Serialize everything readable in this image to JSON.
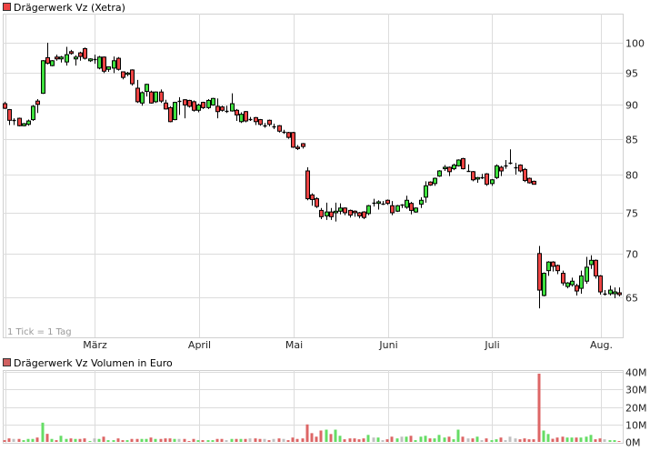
{
  "chart_data": [
    {
      "type": "candlestick",
      "title": "Drägerwerk Vz (Xetra)",
      "note": "1 Tick = 1 Tag",
      "y_scale": "log",
      "ylim": [
        62,
        104
      ],
      "y_ticks": [
        65,
        70,
        75,
        80,
        85,
        90,
        95,
        100
      ],
      "x_ticks": [
        {
          "label": "März",
          "month": "03"
        },
        {
          "label": "April",
          "month": "04"
        },
        {
          "label": "Mai",
          "month": "05"
        },
        {
          "label": "Juni",
          "month": "06"
        },
        {
          "label": "Juli",
          "month": "07"
        },
        {
          "label": "Aug.",
          "month": "08"
        }
      ],
      "grid": true,
      "y_axis_side": "right",
      "colors": {
        "up": "#3ee03e",
        "down": "#ee4444",
        "legend": "#ee4444"
      },
      "candle_fields": [
        "date",
        "open",
        "high",
        "low",
        "close"
      ],
      "candles": [
        [
          "02.02.",
          90.2,
          90.5,
          89.4,
          89.5
        ],
        [
          "03.02.",
          89.3,
          89.4,
          87.0,
          87.7
        ],
        [
          "04.02.",
          87.7,
          88.0,
          87.0,
          87.7
        ],
        [
          "05.02.",
          88.0,
          88.1,
          86.8,
          86.9
        ],
        [
          "06.02.",
          86.9,
          87.3,
          86.8,
          87.2
        ],
        [
          "09.02.",
          87.1,
          87.8,
          86.9,
          87.6
        ],
        [
          "10.02.",
          87.8,
          90.0,
          87.6,
          89.8
        ],
        [
          "11.02.",
          90.6,
          90.9,
          88.8,
          90.1
        ],
        [
          "12.02.",
          91.8,
          97.1,
          91.7,
          97.0
        ],
        [
          "13.02.",
          97.5,
          100.0,
          96.4,
          96.6
        ],
        [
          "16.02.",
          96.2,
          97.1,
          96.1,
          97.0
        ],
        [
          "17.02.",
          97.6,
          98.0,
          97.0,
          97.3
        ],
        [
          "18.02.",
          97.3,
          97.8,
          96.7,
          97.6
        ],
        [
          "19.02.",
          96.8,
          99.3,
          96.2,
          98.0
        ],
        [
          "20.02.",
          98.5,
          98.8,
          98.0,
          98.2
        ],
        [
          "23.02.",
          97.3,
          97.9,
          96.2,
          97.6
        ],
        [
          "24.02.",
          98.3,
          98.5,
          97.0,
          97.7
        ],
        [
          "25.02.",
          99.0,
          99.2,
          97.2,
          97.4
        ],
        [
          "26.02.",
          97.0,
          97.4,
          96.8,
          97.3
        ],
        [
          "27.02.",
          97.3,
          98.0,
          96.5,
          97.3
        ],
        [
          "02.03.",
          95.8,
          97.8,
          95.6,
          97.6
        ],
        [
          "03.03.",
          97.6,
          97.7,
          95.0,
          95.3
        ],
        [
          "04.03.",
          95.6,
          96.0,
          95.2,
          96.0
        ],
        [
          "05.03.",
          95.8,
          97.7,
          95.0,
          97.0
        ],
        [
          "06.03.",
          97.4,
          97.6,
          95.4,
          95.6
        ],
        [
          "09.03.",
          95.2,
          95.2,
          94.0,
          94.3
        ],
        [
          "10.03.",
          94.8,
          95.2,
          94.5,
          95.0
        ],
        [
          "11.03.",
          95.5,
          95.6,
          93.0,
          93.3
        ],
        [
          "12.03.",
          92.6,
          93.9,
          90.3,
          90.5
        ],
        [
          "13.03.",
          90.3,
          92.1,
          89.9,
          91.9
        ],
        [
          "16.03.",
          92.1,
          93.3,
          91.3,
          93.2
        ],
        [
          "17.03.",
          92.0,
          92.2,
          90.2,
          90.3
        ],
        [
          "18.03.",
          90.5,
          92.1,
          90.3,
          92.0
        ],
        [
          "19.03.",
          92.0,
          92.4,
          90.3,
          90.6
        ],
        [
          "20.03.",
          90.3,
          90.8,
          89.3,
          89.4
        ],
        [
          "23.03.",
          89.6,
          89.8,
          87.4,
          87.5
        ],
        [
          "24.03.",
          87.8,
          90.5,
          87.7,
          90.4
        ],
        [
          "25.03.",
          90.6,
          91.2,
          88.5,
          90.6
        ],
        [
          "26.03.",
          90.8,
          90.9,
          88.0,
          90.0
        ],
        [
          "27.03.",
          90.7,
          90.8,
          89.6,
          89.8
        ],
        [
          "30.03.",
          90.5,
          90.7,
          89.0,
          89.2
        ],
        [
          "31.03.",
          89.2,
          90.2,
          88.9,
          90.0
        ],
        [
          "01.04.",
          90.4,
          90.5,
          89.4,
          89.6
        ],
        [
          "02.04.",
          89.6,
          90.9,
          89.4,
          90.7
        ],
        [
          "07.04.",
          90.0,
          91.1,
          89.9,
          91.0
        ],
        [
          "08.04.",
          89.8,
          91.0,
          88.0,
          89.0
        ],
        [
          "09.04.",
          89.7,
          89.9,
          89.0,
          89.2
        ],
        [
          "10.04.",
          89.1,
          89.9,
          88.8,
          89.1
        ],
        [
          "13.04.",
          89.1,
          91.8,
          89.0,
          90.2
        ],
        [
          "14.04.",
          89.2,
          89.4,
          87.6,
          88.5
        ],
        [
          "15.04.",
          87.5,
          88.9,
          87.3,
          88.6
        ],
        [
          "16.04.",
          89.0,
          89.1,
          87.4,
          87.6
        ],
        [
          "17.04.",
          87.9,
          88.2,
          87.6,
          87.9
        ],
        [
          "20.04.",
          88.1,
          88.2,
          87.0,
          87.5
        ],
        [
          "21.04.",
          87.8,
          87.9,
          86.9,
          87.1
        ],
        [
          "22.04.",
          87.0,
          87.3,
          86.6,
          87.0
        ],
        [
          "23.04.",
          87.7,
          87.8,
          86.8,
          87.1
        ],
        [
          "24.04.",
          86.8,
          87.2,
          86.4,
          86.8
        ],
        [
          "27.04.",
          86.9,
          87.0,
          85.9,
          86.1
        ],
        [
          "28.04.",
          86.0,
          86.3,
          85.7,
          86.0
        ],
        [
          "29.04.",
          85.9,
          86.0,
          85.0,
          85.2
        ],
        [
          "30.04.",
          85.9,
          86.0,
          83.7,
          83.8
        ],
        [
          "04.05.",
          83.8,
          84.1,
          83.4,
          83.6
        ],
        [
          "05.05.",
          84.3,
          84.4,
          83.6,
          83.9
        ],
        [
          "06.05.",
          80.5,
          81.0,
          76.6,
          76.8
        ],
        [
          "07.05.",
          77.3,
          77.5,
          75.9,
          76.7
        ],
        [
          "08.05.",
          76.8,
          77.0,
          75.6,
          75.8
        ],
        [
          "11.05.",
          75.3,
          75.6,
          74.2,
          74.5
        ],
        [
          "12.05.",
          74.6,
          76.3,
          74.1,
          75.1
        ],
        [
          "13.05.",
          75.1,
          75.6,
          74.1,
          74.5
        ],
        [
          "14.05.",
          75.0,
          76.3,
          73.9,
          75.2
        ],
        [
          "15.05.",
          75.2,
          76.2,
          74.8,
          75.6
        ],
        [
          "18.05.",
          75.6,
          75.7,
          74.7,
          75.0
        ],
        [
          "19.05.",
          75.3,
          75.4,
          74.4,
          74.7
        ],
        [
          "20.05.",
          75.2,
          75.3,
          74.5,
          75.0
        ],
        [
          "21.05.",
          75.0,
          75.1,
          74.3,
          74.6
        ],
        [
          "22.05.",
          75.1,
          75.2,
          74.2,
          74.4
        ],
        [
          "25.05.",
          74.9,
          76.0,
          74.7,
          75.9
        ],
        [
          "26.05.",
          76.3,
          76.8,
          75.8,
          76.3
        ],
        [
          "27.05.",
          76.2,
          76.6,
          75.4,
          76.4
        ],
        [
          "28.05.",
          76.2,
          76.5,
          76.0,
          76.2
        ],
        [
          "29.05.",
          76.6,
          76.7,
          76.0,
          76.2
        ],
        [
          "01.06.",
          75.9,
          76.5,
          74.7,
          75.0
        ],
        [
          "02.06.",
          75.2,
          76.0,
          75.1,
          75.9
        ],
        [
          "03.06.",
          76.0,
          76.1,
          75.6,
          76.0
        ],
        [
          "04.06.",
          75.7,
          77.2,
          75.5,
          76.6
        ],
        [
          "05.06.",
          76.2,
          76.4,
          74.8,
          75.3
        ],
        [
          "08.06.",
          75.1,
          75.7,
          75.0,
          75.6
        ],
        [
          "09.06.",
          76.1,
          77.0,
          75.6,
          76.6
        ],
        [
          "10.06.",
          77.0,
          79.1,
          76.3,
          78.5
        ],
        [
          "11.06.",
          79.0,
          79.1,
          78.5,
          78.6
        ],
        [
          "12.06.",
          78.8,
          79.6,
          78.5,
          79.5
        ],
        [
          "15.06.",
          79.8,
          80.6,
          79.7,
          80.5
        ],
        [
          "16.06.",
          80.8,
          81.3,
          80.5,
          81.0
        ],
        [
          "17.06.",
          81.0,
          81.1,
          79.8,
          80.4
        ],
        [
          "18.06.",
          80.8,
          81.5,
          80.6,
          81.3
        ],
        [
          "19.06.",
          81.2,
          82.1,
          81.1,
          82.0
        ],
        [
          "22.06.",
          82.2,
          82.3,
          80.7,
          80.8
        ],
        [
          "23.06.",
          80.5,
          81.4,
          80.4,
          80.5
        ],
        [
          "24.06.",
          80.4,
          80.5,
          79.1,
          79.3
        ],
        [
          "25.06.",
          79.4,
          79.7,
          78.9,
          79.6
        ],
        [
          "26.06.",
          79.6,
          80.1,
          79.4,
          79.6
        ],
        [
          "29.06.",
          80.1,
          80.2,
          78.5,
          78.7
        ],
        [
          "30.06.",
          78.8,
          79.4,
          78.5,
          79.3
        ],
        [
          "01.07.",
          79.6,
          81.4,
          79.4,
          81.2
        ],
        [
          "02.07.",
          81.0,
          81.2,
          79.8,
          80.5
        ],
        [
          "03.07.",
          81.2,
          82.0,
          80.8,
          81.2
        ],
        [
          "06.07.",
          81.6,
          83.5,
          81.4,
          81.6
        ],
        [
          "07.07.",
          81.0,
          81.6,
          80.0,
          81.0
        ],
        [
          "08.07.",
          81.3,
          81.4,
          80.3,
          80.5
        ],
        [
          "09.07.",
          80.7,
          80.9,
          79.0,
          79.2
        ],
        [
          "10.07.",
          79.5,
          79.6,
          78.8,
          78.9
        ],
        [
          "13.07.",
          79.1,
          79.2,
          78.7,
          78.7
        ],
        [
          "14.07.",
          70.0,
          70.9,
          63.8,
          65.8
        ],
        [
          "15.07.",
          65.2,
          67.8,
          65.1,
          67.7
        ],
        [
          "16.07.",
          68.0,
          69.1,
          67.4,
          69.0
        ],
        [
          "17.07.",
          69.0,
          69.1,
          67.9,
          68.5
        ],
        [
          "20.07.",
          68.6,
          68.7,
          67.6,
          68.0
        ],
        [
          "21.07.",
          67.7,
          68.0,
          66.3,
          66.6
        ],
        [
          "22.07.",
          66.2,
          66.7,
          66.0,
          66.6
        ],
        [
          "23.07.",
          66.4,
          67.2,
          66.2,
          66.8
        ],
        [
          "24.07.",
          66.3,
          66.5,
          65.2,
          65.7
        ],
        [
          "27.07.",
          66.0,
          68.0,
          65.4,
          67.4
        ],
        [
          "28.07.",
          66.8,
          69.6,
          66.5,
          68.4
        ],
        [
          "29.07.",
          68.7,
          69.8,
          68.2,
          69.2
        ],
        [
          "30.07.",
          69.2,
          69.3,
          67.1,
          67.4
        ],
        [
          "31.07.",
          67.4,
          67.5,
          65.3,
          65.6
        ],
        [
          "03.08.",
          65.4,
          65.8,
          65.2,
          65.4
        ],
        [
          "04.08.",
          65.4,
          66.3,
          65.2,
          65.8
        ],
        [
          "05.08.",
          65.4,
          66.1,
          64.9,
          65.6
        ],
        [
          "06.08.",
          65.5,
          66.1,
          65.1,
          65.3
        ]
      ]
    },
    {
      "type": "bar",
      "title": "Drägerwerk Vz Volumen in Euro",
      "ylim": [
        0,
        40
      ],
      "y_unit": "M",
      "y_ticks": [
        "0M",
        "10M",
        "20M",
        "30M",
        "40M"
      ],
      "y_tick_values": [
        0,
        10,
        20,
        30,
        40
      ],
      "grid": true,
      "colors": {
        "up": "#66dd66",
        "down": "#dd6666",
        "flat": "#c0c0c0",
        "legend": "#d06060"
      },
      "values": [
        1,
        2,
        1.7,
        1.7,
        1,
        1.7,
        1.7,
        2.5,
        11,
        4.6,
        1.7,
        1,
        3.5,
        1.7,
        2,
        1.7,
        1.7,
        2,
        0.5,
        2,
        1.7,
        3,
        1,
        1,
        2,
        1,
        1,
        1.7,
        1.7,
        1.7,
        1.7,
        2.5,
        1.7,
        1.7,
        2,
        2,
        1.7,
        1.7,
        1.7,
        0.5,
        1.7,
        1,
        1,
        1,
        1,
        1.7,
        1.7,
        1,
        1.7,
        1.7,
        1.7,
        1.7,
        2,
        2,
        1.7,
        1.7,
        1,
        1.7,
        2,
        1.7,
        1,
        2.5,
        1.7,
        2,
        10,
        5,
        3,
        6.5,
        7,
        4.5,
        7,
        3.5,
        1.5,
        2,
        2,
        1.5,
        2,
        4,
        2.5,
        2.5,
        1,
        1.5,
        3,
        2,
        3,
        3,
        3.5,
        1,
        3,
        3.5,
        2,
        2,
        4,
        2.5,
        3,
        1.5,
        7,
        3,
        2,
        2,
        3,
        1,
        2,
        1,
        1.5,
        2.5,
        1,
        3,
        2,
        1.5,
        2,
        1.5,
        1.5,
        39,
        6.5,
        4.5,
        1.8,
        2.5,
        3,
        2.5,
        2.5,
        2.5,
        2.5,
        3,
        4,
        1.5,
        2,
        1.5,
        1,
        1,
        0.5
      ]
    }
  ]
}
